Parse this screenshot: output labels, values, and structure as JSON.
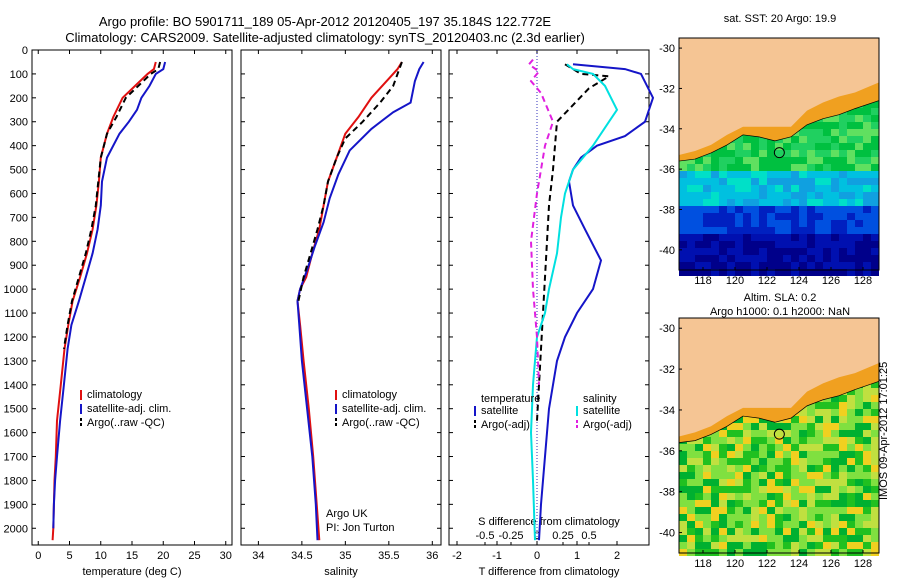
{
  "header": {
    "line1": "Argo profile: BO 5901711_189 05-Apr-2012 20120405_197 35.184S 122.772E",
    "line2": "Climatology: CARS2009. Satellite-adjusted climatology: synTS_20120403.nc (2.3d earlier)"
  },
  "colors": {
    "climatology": "#e01010",
    "satellite": "#1515c8",
    "argo": "#000000",
    "sat_salinity": "#00e0e0",
    "argo_salinity": "#e020e0",
    "land": "#f5c594"
  },
  "chart_data": [
    {
      "type": "line",
      "panel": "temperature",
      "xlabel": "temperature (deg C)",
      "xlim": [
        -1,
        31
      ],
      "xticks": [
        0,
        5,
        10,
        15,
        20,
        25,
        30
      ],
      "ylim": [
        0,
        2070
      ],
      "yticks": [
        0,
        100,
        200,
        300,
        400,
        500,
        600,
        700,
        800,
        900,
        1000,
        1100,
        1200,
        1300,
        1400,
        1500,
        1600,
        1700,
        1800,
        1900,
        2000
      ],
      "legend": [
        "climatology",
        "satellite-adj. clim.",
        "Argo(..raw -QC)"
      ],
      "series": [
        {
          "name": "climatology",
          "style": "solid",
          "color": "#e01010",
          "x": [
            18.8,
            18.5,
            17.5,
            15.5,
            13.5,
            12.0,
            11.0,
            10.0,
            9.7,
            9.3,
            8.7,
            7.8,
            6.7,
            5.5,
            4.8,
            4.2,
            3.6,
            3.0,
            2.8,
            2.6,
            2.5,
            2.4,
            2.3
          ],
          "y": [
            50,
            80,
            100,
            150,
            200,
            280,
            350,
            450,
            550,
            650,
            750,
            850,
            950,
            1050,
            1150,
            1250,
            1400,
            1550,
            1700,
            1800,
            1900,
            2000,
            2050
          ]
        },
        {
          "name": "satellite-adj. clim.",
          "style": "solid",
          "color": "#1515c8",
          "x": [
            20.3,
            20.0,
            18.8,
            17.8,
            16.5,
            15.8,
            14.5,
            13.0,
            11.0,
            10.2,
            10.0,
            9.5,
            8.7,
            7.6,
            6.5,
            5.3,
            4.7,
            4.1,
            3.5,
            3.0,
            2.7,
            2.5,
            2.4
          ],
          "y": [
            50,
            80,
            100,
            150,
            200,
            250,
            300,
            350,
            450,
            550,
            650,
            750,
            850,
            950,
            1050,
            1150,
            1250,
            1400,
            1550,
            1700,
            1800,
            1900,
            2000
          ]
        },
        {
          "name": "Argo(..raw -QC)",
          "style": "dashed",
          "color": "#000000",
          "x": [
            19.5,
            19.2,
            18.0,
            16.0,
            14.0,
            12.5,
            11.0,
            10.0,
            9.6,
            9.2,
            8.5,
            7.6,
            6.5,
            5.4,
            4.7,
            4.1
          ],
          "y": [
            50,
            80,
            100,
            150,
            200,
            280,
            350,
            450,
            550,
            650,
            750,
            850,
            950,
            1050,
            1150,
            1250
          ]
        }
      ]
    },
    {
      "type": "line",
      "panel": "salinity",
      "xlabel": "salinity",
      "xlim": [
        33.8,
        36.1
      ],
      "xticks": [
        34,
        34.5,
        35,
        35.5,
        36
      ],
      "xticklabels": [
        "34",
        "34.5",
        "35",
        "35.5",
        "36"
      ],
      "ylim": [
        0,
        2070
      ],
      "legend": [
        "climatology",
        "satellite-adj. clim.",
        "Argo(..raw -QC)"
      ],
      "annotations": [
        "Argo UK",
        "PI: Jon Turton"
      ],
      "series": [
        {
          "name": "climatology",
          "style": "solid",
          "color": "#e01010",
          "x": [
            35.65,
            35.6,
            35.5,
            35.3,
            35.15,
            35.0,
            34.9,
            34.8,
            34.75,
            34.7,
            34.62,
            34.55,
            34.48,
            34.45,
            34.48,
            34.52,
            34.58,
            34.63,
            34.67,
            34.7
          ],
          "y": [
            50,
            80,
            120,
            200,
            280,
            350,
            450,
            550,
            650,
            750,
            850,
            950,
            1000,
            1050,
            1150,
            1300,
            1500,
            1700,
            1900,
            2050
          ]
        },
        {
          "name": "satellite-adj. clim.",
          "style": "solid",
          "color": "#1515c8",
          "x": [
            35.9,
            35.85,
            35.8,
            35.75,
            35.55,
            35.3,
            35.05,
            34.92,
            34.82,
            34.75,
            34.65,
            34.56,
            34.48,
            34.45,
            34.47,
            34.5,
            34.56,
            34.62,
            34.66,
            34.68
          ],
          "y": [
            50,
            80,
            130,
            220,
            260,
            330,
            420,
            520,
            620,
            720,
            820,
            920,
            1000,
            1050,
            1150,
            1300,
            1500,
            1700,
            1900,
            2050
          ]
        },
        {
          "name": "Argo(..raw -QC)",
          "style": "dashed",
          "color": "#000000",
          "x": [
            35.65,
            35.62,
            35.55,
            35.4,
            35.2,
            35.0,
            34.9,
            34.8,
            34.75,
            34.68,
            34.6,
            34.52,
            34.46
          ],
          "y": [
            50,
            80,
            150,
            220,
            300,
            370,
            450,
            550,
            650,
            750,
            850,
            950,
            1050
          ]
        }
      ]
    },
    {
      "type": "line",
      "panel": "difference",
      "xlabel": "T difference from climatology",
      "top_axis_label": "S difference from climatology",
      "xlim": [
        -2.2,
        2.8
      ],
      "xticks": [
        -2,
        -1,
        0,
        1,
        2
      ],
      "xticklabels": [
        "-2",
        "-1",
        "0",
        "1",
        "2"
      ],
      "top_ticks": [
        -0.5,
        -0.25,
        0,
        0.25,
        0.5
      ],
      "top_ticklabels": [
        "-0.5",
        "-0.25",
        "0",
        "0.25",
        "0.5"
      ],
      "ylim": [
        0,
        2070
      ],
      "legend": [
        "temperature",
        "satellite",
        "Argo(-adj)",
        "salinity",
        "satellite",
        "Argo(-adj)"
      ],
      "series": [
        {
          "name": "temperature satellite",
          "style": "solid",
          "color": "#1515c8",
          "x": [
            0.9,
            2.2,
            2.6,
            2.9,
            2.7,
            2.2,
            1.5,
            1.1,
            0.9,
            0.8,
            0.9,
            1.2,
            1.6,
            1.4,
            1.0,
            0.7,
            0.5,
            0.4,
            0.3,
            0.2,
            0.1,
            0.05
          ],
          "y": [
            60,
            80,
            100,
            200,
            300,
            360,
            400,
            450,
            500,
            550,
            650,
            750,
            880,
            1000,
            1100,
            1200,
            1300,
            1400,
            1500,
            1700,
            1900,
            2050
          ]
        },
        {
          "name": "temperature Argo(-adj)",
          "style": "dashed",
          "color": "#000000",
          "x": [
            0.7,
            1.1,
            1.8,
            1.3,
            0.5,
            0.4,
            0.3,
            0.25,
            0.2,
            0.15,
            0.1,
            0.05,
            0.0
          ],
          "y": [
            60,
            100,
            110,
            160,
            300,
            500,
            650,
            800,
            950,
            1100,
            1250,
            1400,
            1550
          ]
        },
        {
          "name": "salinity satellite",
          "style": "solid",
          "color": "#00e0e0",
          "x": [
            0.75,
            0.9,
            1.4,
            1.7,
            2.0,
            1.8,
            1.4,
            0.9,
            0.7,
            0.6,
            0.5,
            0.3,
            0.2,
            0.0,
            -0.1,
            -0.15,
            -0.1,
            -0.05
          ],
          "y": [
            60,
            80,
            100,
            150,
            250,
            300,
            400,
            500,
            600,
            700,
            850,
            1000,
            1100,
            1200,
            1400,
            1600,
            1800,
            2050
          ]
        },
        {
          "name": "salinity Argo(-adj)",
          "style": "dashed",
          "color": "#e020e0",
          "x": [
            -0.1,
            -0.2,
            0.05,
            -0.15,
            0.1,
            0.4,
            0.2,
            0.0,
            -0.15,
            -0.1,
            0.0,
            0.05
          ],
          "y": [
            40,
            60,
            90,
            130,
            180,
            300,
            400,
            600,
            800,
            1000,
            1200,
            1400
          ]
        }
      ]
    },
    {
      "type": "heatmap",
      "panel": "sat_sst_map",
      "title": "sat. SST: 20 Argo: 19.9",
      "xlim": [
        116.5,
        129
      ],
      "ylim": [
        -41,
        -29.5
      ],
      "xticks": [
        118,
        120,
        122,
        124,
        126,
        128
      ],
      "yticks": [
        -30,
        -32,
        -34,
        -36,
        -38,
        -40
      ],
      "marker": {
        "lon": 122.772,
        "lat": -35.184
      }
    },
    {
      "type": "heatmap",
      "panel": "altim_sla_map",
      "title_line1": "Altim. SLA: 0.2",
      "title_line2": "Argo h1000: 0.1 h2000: NaN",
      "xlim": [
        116.5,
        129
      ],
      "ylim": [
        -41,
        -29.5
      ],
      "xticks": [
        118,
        120,
        122,
        124,
        126,
        128
      ],
      "yticks": [
        -30,
        -32,
        -34,
        -36,
        -38,
        -40
      ],
      "marker": {
        "lon": 122.772,
        "lat": -35.184
      }
    }
  ],
  "stamp": "IMOS 09-Apr-2012 17:01:25"
}
